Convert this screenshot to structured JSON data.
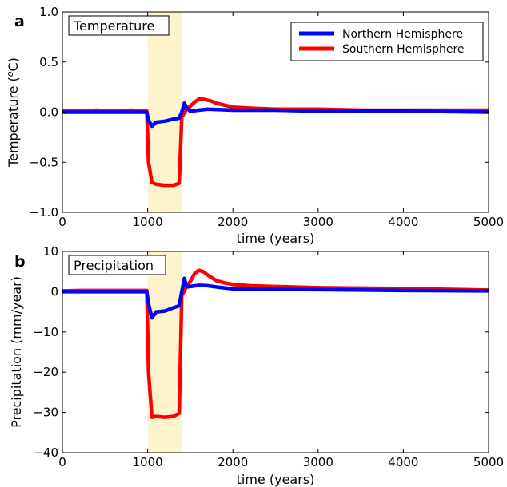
{
  "chart_data": [
    {
      "type": "line",
      "panel_label": "a",
      "title": "Temperature",
      "xlabel": "time (years)",
      "ylabel_base": "Temperature (",
      "ylabel_sup": "o",
      "ylabel_tail": "C)",
      "xlim": [
        0,
        5000
      ],
      "ylim": [
        -1.0,
        1.0
      ],
      "xticks": [
        0,
        1000,
        2000,
        3000,
        4000,
        5000
      ],
      "xtick_labels": [
        "0",
        "1000",
        "2000",
        "3000",
        "4000",
        "5000"
      ],
      "yticks": [
        -1.0,
        -0.5,
        0.0,
        0.5,
        1.0
      ],
      "ytick_labels": [
        "−1.0",
        "−0.5",
        "0.0",
        "0.5",
        "1.0"
      ],
      "shaded_region": [
        1000,
        1400
      ],
      "grid": false,
      "legend": {
        "placement": "top-right",
        "entries": [
          {
            "name": "Northern Hemisphere",
            "color": "#0000ff"
          },
          {
            "name": "Southern Hemisphere",
            "color": "#ff0000"
          }
        ]
      },
      "series": [
        {
          "name": "Southern Hemisphere",
          "color": "#ff0000",
          "x": [
            0,
            200,
            400,
            600,
            800,
            990,
            1010,
            1050,
            1100,
            1200,
            1300,
            1370,
            1400,
            1450,
            1500,
            1550,
            1600,
            1650,
            1700,
            1750,
            1800,
            1900,
            2000,
            2200,
            2500,
            3000,
            3500,
            4000,
            4500,
            5000
          ],
          "y": [
            0.01,
            0.01,
            0.02,
            0.01,
            0.02,
            0.01,
            -0.5,
            -0.7,
            -0.72,
            -0.73,
            -0.73,
            -0.71,
            -0.05,
            0.02,
            0.06,
            0.1,
            0.13,
            0.13,
            0.12,
            0.11,
            0.09,
            0.07,
            0.05,
            0.04,
            0.03,
            0.03,
            0.02,
            0.02,
            0.02,
            0.02
          ]
        },
        {
          "name": "Northern Hemisphere",
          "color": "#0000ff",
          "x": [
            0,
            500,
            990,
            1010,
            1050,
            1100,
            1200,
            1300,
            1370,
            1400,
            1430,
            1460,
            1500,
            1600,
            1700,
            2000,
            2500,
            3000,
            4000,
            5000
          ],
          "y": [
            0.0,
            0.0,
            0.0,
            -0.08,
            -0.14,
            -0.1,
            -0.09,
            -0.07,
            -0.06,
            0.0,
            0.09,
            0.04,
            0.01,
            0.02,
            0.03,
            0.02,
            0.02,
            0.01,
            0.01,
            0.0
          ]
        }
      ]
    },
    {
      "type": "line",
      "panel_label": "b",
      "title": "Precipitation",
      "xlabel": "time (years)",
      "ylabel": "Precipitation (mm/year)",
      "xlim": [
        0,
        5000
      ],
      "ylim": [
        -40,
        10
      ],
      "xticks": [
        0,
        1000,
        2000,
        3000,
        4000,
        5000
      ],
      "xtick_labels": [
        "0",
        "1000",
        "2000",
        "3000",
        "4000",
        "5000"
      ],
      "yticks": [
        -40,
        -30,
        -20,
        -10,
        0,
        10
      ],
      "ytick_labels": [
        "−40",
        "−30",
        "−20",
        "−10",
        "0",
        "10"
      ],
      "shaded_region": [
        1000,
        1400
      ],
      "grid": false,
      "series": [
        {
          "name": "Southern Hemisphere",
          "color": "#ff0000",
          "x": [
            0,
            200,
            400,
            600,
            800,
            990,
            1010,
            1050,
            1100,
            1200,
            1300,
            1370,
            1400,
            1450,
            1500,
            1550,
            1600,
            1650,
            1700,
            1750,
            1800,
            1900,
            2000,
            2200,
            2500,
            3000,
            3500,
            4000,
            4500,
            5000
          ],
          "y": [
            0.2,
            0.3,
            0.3,
            0.3,
            0.3,
            0.3,
            -20,
            -31.2,
            -31.0,
            -31.2,
            -31.0,
            -30.2,
            -1.0,
            1.0,
            2.5,
            4.5,
            5.3,
            5.0,
            4.2,
            3.5,
            2.8,
            2.2,
            1.8,
            1.5,
            1.3,
            1.0,
            0.9,
            0.8,
            0.6,
            0.4
          ]
        },
        {
          "name": "Northern Hemisphere",
          "color": "#0000ff",
          "x": [
            0,
            500,
            990,
            1010,
            1050,
            1100,
            1200,
            1300,
            1370,
            1400,
            1430,
            1460,
            1500,
            1600,
            1700,
            1800,
            2000,
            2500,
            3000,
            4000,
            5000
          ],
          "y": [
            0.0,
            0.0,
            0.0,
            -3.0,
            -6.5,
            -5.0,
            -4.8,
            -4.0,
            -3.5,
            0.0,
            3.3,
            1.2,
            1.3,
            1.6,
            1.5,
            1.2,
            0.7,
            0.6,
            0.5,
            0.3,
            0.2
          ]
        }
      ]
    }
  ]
}
